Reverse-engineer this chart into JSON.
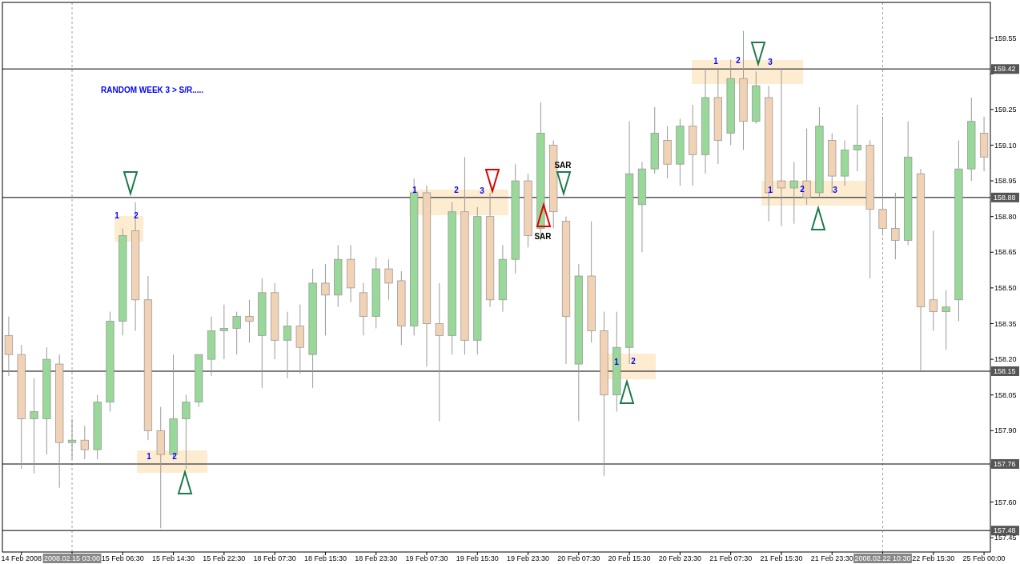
{
  "chart_data": {
    "type": "candlestick",
    "categories": [
      null,
      "14 Feb 2008",
      null,
      null,
      null,
      "2008.02.15 03:00",
      null,
      null,
      null,
      "15 Feb 06:30",
      null,
      null,
      null,
      "15 Feb 14:30",
      null,
      null,
      null,
      "15 Feb 22:30",
      null,
      null,
      null,
      "18 Feb 07:30",
      null,
      null,
      null,
      "18 Feb 15:30",
      null,
      null,
      null,
      "18 Feb 23:30",
      null,
      null,
      null,
      "19 Feb 07:30",
      null,
      null,
      null,
      "19 Feb 15:30",
      null,
      null,
      null,
      "19 Feb 23:30",
      null,
      null,
      null,
      "20 Feb 07:30",
      null,
      null,
      null,
      "20 Feb 15:30",
      null,
      null,
      null,
      "20 Feb 23:30",
      null,
      null,
      null,
      "21 Feb 07:30",
      null,
      null,
      null,
      "21 Feb 15:30",
      null,
      null,
      null,
      "21 Feb 23:30",
      null,
      null,
      null,
      "2008.02.22 10:30",
      null,
      null,
      null,
      "22 Feb 15:30",
      null,
      null,
      null,
      "25 Feb 00:00"
    ],
    "ohlc": [
      [
        158.3,
        158.38,
        158.13,
        158.22
      ],
      [
        158.22,
        158.26,
        157.74,
        157.95
      ],
      [
        157.95,
        158.12,
        157.72,
        157.98
      ],
      [
        157.95,
        158.25,
        157.8,
        158.2
      ],
      [
        158.18,
        158.22,
        157.66,
        157.85
      ],
      [
        157.85,
        157.95,
        157.78,
        157.86
      ],
      [
        157.86,
        157.92,
        157.78,
        157.82
      ],
      [
        157.82,
        158.05,
        157.78,
        158.02
      ],
      [
        158.02,
        158.4,
        157.98,
        158.36
      ],
      [
        158.36,
        158.75,
        158.3,
        158.72
      ],
      [
        158.74,
        158.86,
        158.32,
        158.45
      ],
      [
        158.45,
        158.55,
        157.86,
        157.9
      ],
      [
        157.9,
        158.0,
        157.49,
        157.8
      ],
      [
        157.8,
        158.22,
        157.78,
        157.95
      ],
      [
        157.95,
        158.05,
        157.74,
        158.02
      ],
      [
        158.02,
        158.22,
        158.0,
        158.22
      ],
      [
        158.2,
        158.38,
        158.13,
        158.32
      ],
      [
        158.32,
        158.43,
        158.2,
        158.33
      ],
      [
        158.33,
        158.4,
        158.22,
        158.38
      ],
      [
        158.38,
        158.45,
        158.27,
        158.36
      ],
      [
        158.3,
        158.54,
        158.08,
        158.48
      ],
      [
        158.48,
        158.52,
        158.2,
        158.28
      ],
      [
        158.28,
        158.4,
        158.12,
        158.34
      ],
      [
        158.34,
        158.43,
        158.14,
        158.25
      ],
      [
        158.22,
        158.58,
        158.08,
        158.52
      ],
      [
        158.52,
        158.6,
        158.3,
        158.47
      ],
      [
        158.47,
        158.68,
        158.42,
        158.62
      ],
      [
        158.62,
        158.68,
        158.44,
        158.5
      ],
      [
        158.48,
        158.52,
        158.3,
        158.38
      ],
      [
        158.38,
        158.63,
        158.33,
        158.58
      ],
      [
        158.58,
        158.62,
        158.45,
        158.52
      ],
      [
        158.53,
        158.57,
        158.26,
        158.34
      ],
      [
        158.34,
        158.96,
        158.3,
        158.9
      ],
      [
        158.9,
        158.93,
        158.17,
        158.35
      ],
      [
        158.35,
        158.52,
        157.94,
        158.3
      ],
      [
        158.3,
        158.86,
        158.22,
        158.82
      ],
      [
        158.82,
        159.05,
        158.22,
        158.28
      ],
      [
        158.28,
        158.84,
        158.22,
        158.8
      ],
      [
        158.8,
        158.9,
        158.42,
        158.45
      ],
      [
        158.45,
        158.68,
        158.4,
        158.62
      ],
      [
        158.62,
        159.02,
        158.56,
        158.95
      ],
      [
        158.95,
        158.98,
        158.67,
        158.72
      ],
      [
        158.75,
        159.28,
        158.7,
        159.15
      ],
      [
        159.1,
        159.12,
        158.75,
        158.82
      ],
      [
        158.78,
        158.8,
        158.18,
        158.38
      ],
      [
        158.18,
        158.6,
        157.94,
        158.55
      ],
      [
        158.55,
        158.78,
        158.27,
        158.32
      ],
      [
        158.32,
        158.4,
        157.71,
        158.05
      ],
      [
        158.05,
        158.4,
        157.98,
        158.25
      ],
      [
        158.25,
        159.2,
        158.18,
        158.98
      ],
      [
        158.85,
        159.03,
        158.65,
        159.0
      ],
      [
        159.0,
        159.26,
        158.98,
        159.15
      ],
      [
        159.12,
        159.18,
        158.96,
        159.02
      ],
      [
        159.02,
        159.21,
        158.93,
        159.18
      ],
      [
        159.18,
        159.27,
        158.93,
        159.06
      ],
      [
        159.06,
        159.42,
        158.98,
        159.3
      ],
      [
        159.3,
        159.42,
        159.02,
        159.12
      ],
      [
        159.15,
        159.46,
        159.1,
        159.38
      ],
      [
        159.38,
        159.58,
        159.08,
        159.2
      ],
      [
        159.2,
        159.41,
        159.19,
        159.35
      ],
      [
        159.3,
        159.35,
        158.78,
        158.9
      ],
      [
        158.95,
        159.42,
        158.76,
        158.92
      ],
      [
        158.92,
        159.03,
        158.77,
        158.95
      ],
      [
        158.95,
        159.17,
        158.85,
        158.88
      ],
      [
        158.9,
        159.26,
        158.88,
        159.18
      ],
      [
        159.12,
        159.15,
        158.9,
        158.97
      ],
      [
        158.97,
        159.12,
        158.93,
        159.08
      ],
      [
        159.08,
        159.27,
        158.99,
        159.1
      ],
      [
        159.1,
        159.12,
        158.54,
        158.83
      ],
      [
        158.83,
        159.22,
        158.72,
        158.75
      ],
      [
        158.75,
        158.9,
        158.62,
        158.7
      ],
      [
        158.7,
        159.2,
        158.68,
        159.05
      ],
      [
        158.98,
        159.0,
        158.15,
        158.42
      ],
      [
        158.45,
        158.74,
        158.32,
        158.4
      ],
      [
        158.4,
        158.49,
        158.24,
        158.42
      ],
      [
        158.45,
        159.12,
        158.36,
        159.0
      ],
      [
        159.0,
        159.3,
        158.95,
        159.2
      ],
      [
        159.15,
        159.22,
        158.99,
        159.05
      ]
    ],
    "ylim": [
      157.39,
      159.7
    ],
    "yticks": [
      159.55,
      {
        "value": 159.4,
        "label": null
      },
      159.25,
      {
        "value": 159.1,
        "label": "159.10"
      },
      158.95,
      {
        "value": 158.8,
        "label": "158.80"
      },
      158.65,
      {
        "value": 158.5,
        "label": "158.50"
      },
      158.35,
      {
        "value": 158.2,
        "label": "158.20"
      },
      158.05,
      {
        "value": 157.9,
        "label": "157.90"
      },
      {
        "value": 157.75,
        "label": null
      },
      {
        "value": 157.6,
        "label": "157.60"
      },
      157.45
    ],
    "ref_lines": [
      {
        "axis": "y",
        "value": 159.42,
        "label": "159.42",
        "color": "#555555"
      },
      {
        "axis": "y",
        "value": 158.88,
        "label": "158.88",
        "color": "#555555"
      },
      {
        "axis": "y",
        "value": 158.15,
        "label": "158.15",
        "color": "#555555"
      },
      {
        "axis": "y",
        "value": 157.76,
        "label": "157.76",
        "color": "#555555"
      },
      {
        "axis": "y",
        "value": 157.48,
        "label": "157.48",
        "color": "#555555"
      },
      {
        "axis": "x",
        "value": "2008.02.15 03:00",
        "color": "#a0a0a0",
        "line_style": "dashed"
      },
      {
        "axis": "x",
        "value": "2008.02.22 10:30",
        "color": "#a0a0a0",
        "line_style": "dashed"
      }
    ],
    "annotations": [
      "RANDOM WEEK 3 > S/R.....",
      "1",
      "2",
      "1",
      "2",
      "1",
      "2",
      "3",
      "SAR",
      "SAR",
      "1",
      "2",
      "1",
      "2",
      "3",
      "1",
      "2",
      "3"
    ],
    "grid": false
  }
}
